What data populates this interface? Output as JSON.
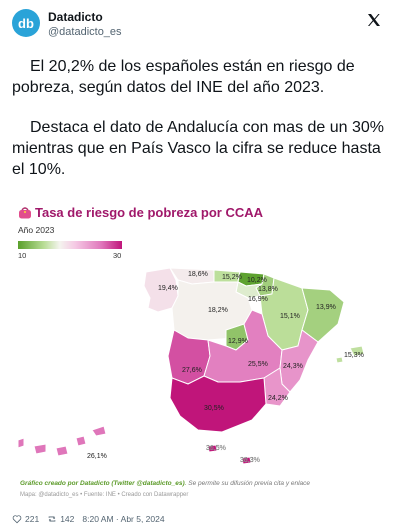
{
  "author": {
    "name": "Datadicto",
    "handle": "@datadicto_es",
    "avatar_text": "db",
    "avatar_color": "#2aa3d8"
  },
  "tweet": {
    "paragraph1": "El 20,2% de los españoles están en riesgo de pobreza, según datos del INE del año 2023.",
    "paragraph2": "Destaca el dato de Andalucía con mas de un 30% mientras que en País Vasco la cifra se reduce hasta el 10%."
  },
  "chart": {
    "title": "Tasa de riesgo de pobreza por CCAA",
    "year_label": "Año 2023",
    "legend_min": "10",
    "legend_max": "30",
    "credit_bold": "Gráfico creado por Datadicto (Twitter @datadicto_es)",
    "credit_rest": "Se permite su difusión previa cita y enlace",
    "source": "Mapa: @datadicto_es • Fuente: INE • Creado con Datawrapper",
    "colors": {
      "low": "#5aa02c",
      "mid": "#f4f4ee",
      "high": "#c0157a"
    }
  },
  "chart_data": {
    "type": "choropleth",
    "title": "Tasa de riesgo de pobreza por CCAA",
    "subtitle": "Año 2023",
    "scale": [
      10,
      30
    ],
    "regions": [
      {
        "name": "Galicia",
        "value": 19.4,
        "label": "19,4%"
      },
      {
        "name": "Asturias",
        "value": 18.6,
        "label": "18,6%"
      },
      {
        "name": "Cantabria",
        "value": 15.2,
        "label": "15,2%"
      },
      {
        "name": "País Vasco",
        "value": 10.2,
        "label": "10,2%"
      },
      {
        "name": "Navarra",
        "value": 13.8,
        "label": "13,8%"
      },
      {
        "name": "La Rioja",
        "value": 16.9,
        "label": "16,9%"
      },
      {
        "name": "Aragón",
        "value": 15.1,
        "label": "15,1%"
      },
      {
        "name": "Cataluña",
        "value": 13.9,
        "label": "13,9%"
      },
      {
        "name": "Castilla y León",
        "value": 18.2,
        "label": "18,2%"
      },
      {
        "name": "Madrid",
        "value": 12.9,
        "label": "12,9%"
      },
      {
        "name": "Extremadura",
        "value": 27.6,
        "label": "27,6%"
      },
      {
        "name": "Castilla-La Mancha",
        "value": 25.5,
        "label": "25,5%"
      },
      {
        "name": "Comunidad Valenciana",
        "value": 24.3,
        "label": "24,3%"
      },
      {
        "name": "Murcia",
        "value": 24.2,
        "label": "24,2%"
      },
      {
        "name": "Andalucía",
        "value": 30.5,
        "label": "30,5%"
      },
      {
        "name": "Islas Baleares",
        "value": 15.3,
        "label": "15,3%"
      },
      {
        "name": "Canarias",
        "value": 26.1,
        "label": "26,1%"
      },
      {
        "name": "Ceuta",
        "value": 36.5,
        "label": "36,5%"
      },
      {
        "name": "Melilla",
        "value": 38.3,
        "label": "38,3%"
      }
    ]
  },
  "footer": {
    "likes": "221",
    "retweets": "142",
    "timestamp": "8:20 AM · Abr 5, 2024"
  }
}
